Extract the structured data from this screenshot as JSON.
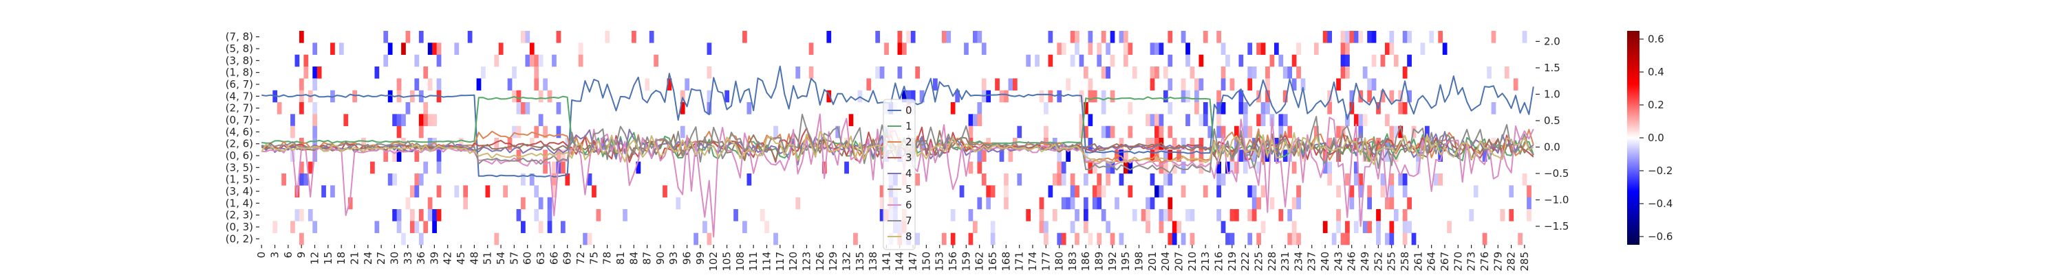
{
  "chart_data": {
    "type": "heatmap",
    "title": "",
    "xlabel": "",
    "ylabel": "",
    "heatmap": {
      "rows": [
        "(7, 8)",
        "(5, 8)",
        "(3, 8)",
        "(1, 8)",
        "(6, 7)",
        "(4, 7)",
        "(2, 7)",
        "(0, 7)",
        "(4, 6)",
        "(2, 6)",
        "(0, 6)",
        "(3, 5)",
        "(1, 5)",
        "(3, 4)",
        "(1, 4)",
        "(2, 3)",
        "(0, 3)",
        "(0, 2)"
      ],
      "x_tick_labels": [
        "0",
        "3",
        "6",
        "9",
        "12",
        "15",
        "18",
        "21",
        "24",
        "27",
        "30",
        "33",
        "36",
        "39",
        "42",
        "45",
        "48",
        "51",
        "54",
        "57",
        "60",
        "63",
        "66",
        "69",
        "72",
        "75",
        "78",
        "81",
        "84",
        "87",
        "90",
        "93",
        "96",
        "99",
        "102",
        "105",
        "108",
        "111",
        "114",
        "117",
        "120",
        "123",
        "126",
        "129",
        "132",
        "135",
        "138",
        "141",
        "144",
        "147",
        "150",
        "153",
        "156",
        "159",
        "162",
        "165",
        "168",
        "171",
        "174",
        "177",
        "180",
        "183",
        "186",
        "189",
        "192",
        "195",
        "198",
        "201",
        "204",
        "207",
        "210",
        "213",
        "216",
        "219",
        "222",
        "225",
        "228",
        "231",
        "234",
        "237",
        "240",
        "243",
        "246",
        "249",
        "252",
        "255",
        "258",
        "261",
        "264",
        "267",
        "270",
        "273",
        "276",
        "279",
        "282",
        "285"
      ],
      "n_columns": 288,
      "colormap": "seismic",
      "vmin": -0.65,
      "vmax": 0.65,
      "colorbar_ticks": [
        "0.6",
        "0.4",
        "0.2",
        "0.0",
        "−0.2",
        "−0.4",
        "−0.6"
      ],
      "colorbar_tick_values": [
        0.6,
        0.4,
        0.2,
        0.0,
        -0.2,
        -0.4,
        -0.6
      ]
    },
    "line_overlay": {
      "type": "line",
      "y_axis": "right",
      "ylim": [
        -1.85,
        2.2
      ],
      "y_tick_labels": [
        "2.0",
        "1.5",
        "1.0",
        "0.5",
        "0.0",
        "−0.5",
        "−1.0",
        "−1.5"
      ],
      "y_tick_values": [
        2.0,
        1.5,
        1.0,
        0.5,
        0.0,
        -0.5,
        -1.0,
        -1.5
      ],
      "legend_position": "center",
      "series": [
        {
          "name": "0",
          "color": "#4c72b0"
        },
        {
          "name": "1",
          "color": "#55a868"
        },
        {
          "name": "2",
          "color": "#dd8452"
        },
        {
          "name": "3",
          "color": "#c44e52"
        },
        {
          "name": "4",
          "color": "#8172b3"
        },
        {
          "name": "5",
          "color": "#937860"
        },
        {
          "name": "6",
          "color": "#da8bc3"
        },
        {
          "name": "7",
          "color": "#8c8c8c"
        },
        {
          "name": "8",
          "color": "#ccb974"
        }
      ],
      "regimes": [
        {
          "from": 0,
          "to": 48,
          "levels": [
            0.97,
            0.1,
            0.04,
            0.0,
            -0.02,
            -0.03,
            -0.06,
            0.03,
            -0.03
          ]
        },
        {
          "from": 49,
          "to": 69,
          "levels": [
            -0.55,
            0.93,
            0.22,
            0.05,
            -0.05,
            0.0,
            -0.28,
            -0.24,
            -0.15
          ]
        },
        {
          "from": 70,
          "to": 159,
          "levels": [
            1.0,
            0.0,
            0.05,
            0.0,
            0.0,
            0.0,
            -0.1,
            0.05,
            0.0
          ]
        },
        {
          "from": 160,
          "to": 185,
          "levels": [
            0.98,
            0.08,
            0.03,
            0.0,
            -0.03,
            -0.02,
            -0.05,
            0.04,
            -0.02
          ]
        },
        {
          "from": 186,
          "to": 214,
          "levels": [
            -0.1,
            0.92,
            -0.22,
            0.0,
            0.0,
            0.0,
            -0.3,
            -0.4,
            -0.25
          ]
        },
        {
          "from": 215,
          "to": 287,
          "levels": [
            0.95,
            0.0,
            0.05,
            0.0,
            0.0,
            0.0,
            -0.1,
            0.05,
            0.0
          ]
        }
      ]
    }
  }
}
